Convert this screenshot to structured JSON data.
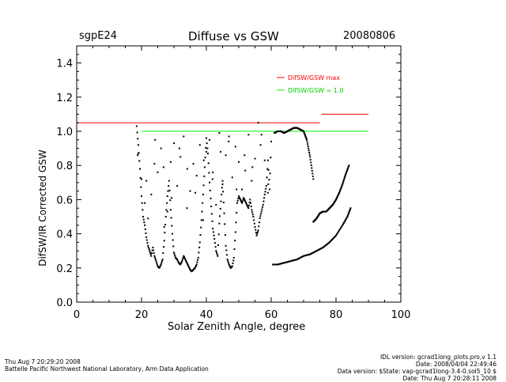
{
  "header": {
    "site": "sgpE24",
    "title": "Diffuse vs GSW",
    "date": "20080806"
  },
  "footer": {
    "left_line1": "Thu Aug  7 20:29:20 2008",
    "left_line2": "Battelle Pacific Northwest National Laboratory, Arm Data Application",
    "right_line1": "IDL version: gcrad1long_plots.pro,v 1.1",
    "right_line2": "Date: 2008/04/04 22:49:46",
    "right_line3": "Data version: $State: vap-gcrad1long-3.4-0.sol5_10 $",
    "right_line4": "Date: Thu Aug  7 20:28:11 2008"
  },
  "colors": {
    "max_line": "#ff0000",
    "one_line": "#00ff00",
    "points": "#000000"
  },
  "chart_data": {
    "type": "scatter",
    "title": "Diffuse vs GSW",
    "xlabel": "Solar Zenith Angle, degree",
    "ylabel": "DifSW/IR Corrected GSW",
    "xlim": [
      0,
      100
    ],
    "ylim": [
      0.0,
      1.5
    ],
    "xticks": [
      "0",
      "20",
      "40",
      "60",
      "80",
      "100"
    ],
    "yticks": [
      "0.0",
      "0.2",
      "0.4",
      "0.6",
      "0.8",
      "1.0",
      "1.2",
      "1.4"
    ],
    "xtick_values": [
      0,
      20,
      40,
      60,
      80,
      100
    ],
    "ytick_values": [
      0.0,
      0.2,
      0.4,
      0.6,
      0.8,
      1.0,
      1.2,
      1.4
    ],
    "reference_lines": [
      {
        "name": "DifSW/GSW max",
        "segments": [
          [
            0,
            75,
            1.05
          ],
          [
            75.5,
            90,
            1.1
          ]
        ],
        "color": "#ff0000"
      },
      {
        "name": "DifSW/GSW = 1.0",
        "segments": [
          [
            20,
            90,
            1.0
          ]
        ],
        "color": "#00ff00"
      }
    ],
    "legend": [
      {
        "label": "DifSW/GSW max",
        "color": "#ff0000"
      },
      {
        "label": "DifSW/GSW = 1.0",
        "color": "#00ff00"
      }
    ],
    "series": [
      {
        "name": "curve_morning_lower",
        "x": [
          60.5,
          62,
          64,
          66,
          68,
          70,
          72,
          74,
          76,
          78,
          80,
          82,
          83.5,
          84.5
        ],
        "y": [
          0.22,
          0.22,
          0.23,
          0.24,
          0.25,
          0.27,
          0.28,
          0.3,
          0.32,
          0.35,
          0.39,
          0.45,
          0.5,
          0.55
        ]
      },
      {
        "name": "curve_morning_upper",
        "x": [
          73,
          74,
          75,
          76,
          77,
          78,
          79,
          80,
          81,
          82,
          83,
          84
        ],
        "y": [
          0.47,
          0.49,
          0.52,
          0.53,
          0.53,
          0.55,
          0.57,
          0.6,
          0.64,
          0.69,
          0.75,
          0.8
        ]
      },
      {
        "name": "curve_high_mid",
        "x": [
          61,
          62,
          63,
          64,
          65,
          66,
          67,
          68,
          69,
          70,
          71,
          72,
          73
        ],
        "y": [
          0.99,
          1.0,
          1.0,
          0.99,
          1.0,
          1.01,
          1.02,
          1.02,
          1.01,
          1.0,
          0.95,
          0.85,
          0.72
        ]
      },
      {
        "name": "scatter_cloudy",
        "x": [
          18.5,
          19,
          19.5,
          20,
          20.5,
          21,
          21.5,
          22,
          22.5,
          23,
          23.5,
          24,
          24.5,
          25,
          25.5,
          26,
          26.5,
          27,
          27.5,
          28,
          28.5,
          29,
          29.5,
          30,
          30.5,
          31,
          31.5,
          32,
          32.5,
          33,
          33.5,
          34,
          34.5,
          35,
          35.5,
          36,
          36.5,
          37,
          37.5,
          38,
          38.5,
          39,
          39.5,
          40,
          40.5,
          41,
          41.5,
          42,
          42.5,
          43,
          43.5,
          44,
          44.5,
          45,
          45.5,
          46,
          46.5,
          47,
          47.5,
          48,
          48.5,
          49,
          49.5,
          50,
          50.5,
          51,
          51.5,
          52,
          52.5,
          53,
          53.5,
          54,
          54.5,
          55,
          55.5,
          56,
          56.5,
          57,
          57.5,
          58,
          58.5,
          59,
          59.5,
          60,
          19,
          20,
          21,
          22,
          23,
          24,
          25,
          26,
          27,
          28,
          29,
          30,
          31,
          32,
          33,
          34,
          35,
          36,
          37,
          38,
          39,
          40,
          41,
          42,
          43,
          44,
          45,
          46,
          47,
          48,
          49,
          50,
          51,
          52,
          53,
          54,
          55,
          56,
          57,
          58,
          59,
          18.8,
          21.5,
          24.2,
          26.8,
          29.3,
          31.7,
          34.1,
          36.6,
          39.2,
          41.9,
          44.4,
          46.9,
          49.3,
          51.8,
          54.2,
          56.7,
          59.1
        ],
        "y": [
          1.03,
          0.92,
          0.78,
          0.62,
          0.5,
          0.45,
          0.38,
          0.33,
          0.3,
          0.27,
          0.32,
          0.27,
          0.24,
          0.21,
          0.2,
          0.22,
          0.25,
          0.36,
          0.5,
          0.62,
          0.71,
          0.54,
          0.4,
          0.29,
          0.26,
          0.25,
          0.23,
          0.22,
          0.24,
          0.27,
          0.25,
          0.23,
          0.21,
          0.19,
          0.18,
          0.19,
          0.2,
          0.22,
          0.26,
          0.35,
          0.48,
          0.63,
          0.79,
          0.96,
          0.87,
          0.7,
          0.56,
          0.43,
          0.37,
          0.3,
          0.27,
          0.46,
          0.59,
          0.71,
          0.52,
          0.33,
          0.25,
          0.22,
          0.2,
          0.21,
          0.26,
          0.41,
          0.58,
          0.62,
          0.6,
          0.58,
          0.61,
          0.59,
          0.57,
          0.55,
          0.6,
          0.54,
          0.5,
          0.44,
          0.39,
          0.42,
          0.49,
          0.53,
          0.57,
          0.63,
          0.68,
          0.83,
          0.66,
          0.94,
          0.87,
          0.72,
          0.58,
          0.49,
          0.63,
          0.81,
          0.76,
          0.9,
          0.44,
          0.53,
          0.82,
          0.93,
          0.68,
          0.85,
          0.97,
          0.55,
          0.65,
          0.81,
          0.74,
          0.92,
          0.48,
          0.88,
          0.95,
          0.76,
          0.57,
          0.99,
          0.69,
          0.86,
          0.97,
          0.73,
          0.91,
          0.82,
          0.66,
          0.77,
          0.98,
          0.71,
          0.84,
          1.05,
          0.98,
          0.83,
          0.64,
          0.86,
          0.71,
          0.95,
          0.79,
          0.61,
          0.9,
          0.78,
          0.64,
          0.83,
          0.72,
          0.88,
          0.94,
          0.66,
          0.86,
          0.79,
          0.92,
          0.69
        ]
      }
    ]
  }
}
